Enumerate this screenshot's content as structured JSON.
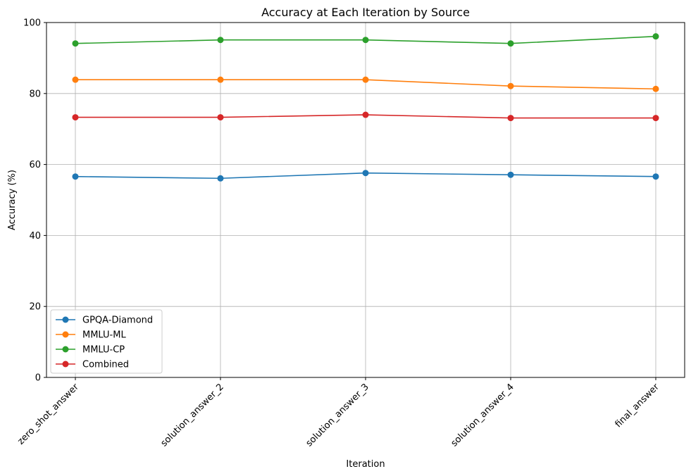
{
  "chart_data": {
    "type": "line",
    "title": "Accuracy at Each Iteration by Source",
    "xlabel": "Iteration",
    "ylabel": "Accuracy (%)",
    "categories": [
      "zero_shot_answer",
      "solution_answer_2",
      "solution_answer_3",
      "solution_answer_4",
      "final_answer"
    ],
    "ylim": [
      0,
      100
    ],
    "yticks": [
      0,
      20,
      40,
      60,
      80,
      100
    ],
    "grid": true,
    "legend_position": "lower-left",
    "series": [
      {
        "name": "GPQA-Diamond",
        "color": "#1f77b4",
        "values": [
          56.6,
          56.1,
          57.6,
          57.1,
          56.6
        ]
      },
      {
        "name": "MMLU-ML",
        "color": "#ff7f0e",
        "values": [
          83.9,
          83.9,
          83.9,
          82.1,
          81.3
        ]
      },
      {
        "name": "MMLU-CP",
        "color": "#2ca02c",
        "values": [
          94.1,
          95.1,
          95.1,
          94.1,
          96.1
        ]
      },
      {
        "name": "Combined",
        "color": "#d62728",
        "values": [
          73.3,
          73.3,
          74.0,
          73.1,
          73.1
        ]
      }
    ]
  }
}
